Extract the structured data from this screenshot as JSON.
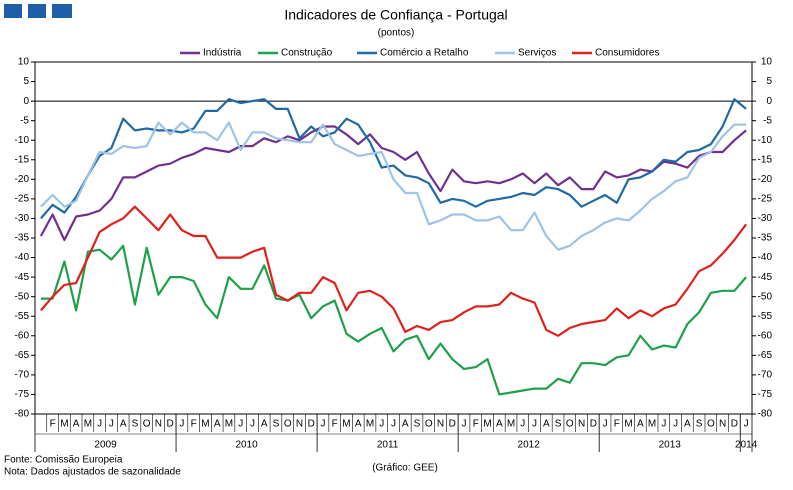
{
  "header": {
    "title": "Indicadores de Confiança - Portugal",
    "subtitle": "(pontos)"
  },
  "chart_data": {
    "type": "line",
    "categories": [
      null,
      "F",
      "M",
      "A",
      "M",
      "J",
      "J",
      "A",
      "S",
      "O",
      "N",
      "D",
      "J",
      "F",
      "M",
      "A",
      "M",
      "J",
      "J",
      "A",
      "S",
      "O",
      "N",
      "D",
      "J",
      "F",
      "M",
      "A",
      "M",
      "J",
      "J",
      "A",
      "S",
      "O",
      "N",
      "D",
      "J",
      "F",
      "M",
      "A",
      "M",
      "J",
      "J",
      "A",
      "S",
      "O",
      "N",
      "D",
      "J",
      "F",
      "M",
      "A",
      "M",
      "J",
      "J",
      "A",
      "S",
      "O",
      "N",
      "D",
      "J"
    ],
    "years": [
      "2009",
      "2010",
      "2011",
      "2012",
      "2013",
      "2014"
    ],
    "ylim": [
      -80,
      10
    ],
    "yticks": [
      10,
      5,
      0,
      -5,
      -10,
      -15,
      -20,
      -25,
      -30,
      -35,
      -40,
      -45,
      -50,
      -55,
      -60,
      -65,
      -70,
      -75,
      -80
    ],
    "y2lim": [
      -80,
      10
    ],
    "y2ticks": [
      10,
      5,
      0,
      -5,
      -10,
      -15,
      -20,
      -25,
      -30,
      -35,
      -40,
      -45,
      -50,
      -55,
      -60,
      -65,
      -70,
      -75,
      -80
    ],
    "reference_line": 0,
    "legend": "top",
    "series": [
      {
        "name": "Indústria",
        "color": "#70308f",
        "values": [
          -34.5,
          -29,
          -35.5,
          -29.5,
          -29,
          -28,
          -25,
          -19.5,
          -19.5,
          -18,
          -16.5,
          -16,
          -14.5,
          -13.5,
          -12,
          -12.5,
          -13,
          -11.5,
          -11.5,
          -9.5,
          -10.5,
          -9,
          -10,
          -8,
          -6.5,
          -6.5,
          -8.5,
          -11,
          -8.5,
          -12,
          -13,
          -15,
          -13,
          -18.5,
          -23,
          -17.5,
          -20.5,
          -21,
          -20.5,
          -21,
          -20,
          -18.5,
          -21,
          -18.5,
          -21.5,
          -19.5,
          -22.5,
          -22.5,
          -18,
          -19.5,
          -19,
          -17.5,
          -18,
          -15.5,
          -16,
          -17,
          -14,
          -13,
          -13,
          -10,
          -7.5
        ]
      },
      {
        "name": "Construção",
        "color": "#1fa04a",
        "values": [
          -50.5,
          -50.5,
          -41,
          -53.5,
          -38.5,
          -38,
          -40.5,
          -37,
          -52,
          -37.5,
          -49.5,
          -45,
          -45,
          -46,
          -52,
          -55.5,
          -45,
          -48,
          -48,
          -42,
          -50.5,
          -51,
          -49.5,
          -55.5,
          -52.5,
          -51,
          -59.5,
          -61.5,
          -59.5,
          -58,
          -64,
          -61,
          -60,
          -66,
          -62,
          -66,
          -68.5,
          -68,
          -66,
          -75,
          -74.5,
          -74,
          -73.5,
          -73.5,
          -71,
          -72,
          -67,
          -67,
          -67.5,
          -65.5,
          -65,
          -60,
          -63.5,
          -62.5,
          -63,
          -57,
          -54,
          -49,
          -48.5,
          -48.5,
          -45
        ]
      },
      {
        "name": "Comércio a Retalho",
        "color": "#1f6aa5",
        "values": [
          -30,
          -26.5,
          -28.5,
          -24.5,
          -19,
          -14,
          -12,
          -4.5,
          -7.5,
          -7,
          -7.5,
          -7.5,
          -8,
          -7,
          -2.5,
          -2.5,
          0.5,
          -0.5,
          0,
          0.5,
          -2,
          -2,
          -9.5,
          -6.5,
          -9,
          -8,
          -4.5,
          -6,
          -10.5,
          -17,
          -16.5,
          -19,
          -19.5,
          -21,
          -26,
          -25,
          -25.5,
          -27,
          -25.5,
          -25,
          -24.5,
          -23.5,
          -24,
          -22,
          -22.5,
          -24,
          -27,
          -25.5,
          -24,
          -26,
          -20,
          -19.5,
          -18,
          -15,
          -15.5,
          -13,
          -12.5,
          -11,
          -6.5,
          0.5,
          -2
        ]
      },
      {
        "name": "Serviços",
        "color": "#9dc3e6",
        "values": [
          -27,
          -24,
          -27,
          -25.5,
          -19,
          -13,
          -13.5,
          -11.5,
          -12,
          -11.5,
          -5.5,
          -8.5,
          -5.5,
          -8,
          -8,
          -10,
          -5.5,
          -12.5,
          -8,
          -8,
          -9.5,
          -10,
          -10.5,
          -10.5,
          -6,
          -11,
          -12.5,
          -14,
          -13.5,
          -13,
          -20,
          -23.5,
          -23.5,
          -31.5,
          -30.5,
          -29,
          -29,
          -30.5,
          -30.5,
          -29.5,
          -33,
          -33,
          -28.5,
          -34.5,
          -38,
          -37,
          -34.5,
          -33,
          -31,
          -30,
          -30.5,
          -28,
          -25,
          -23,
          -20.5,
          -19.5,
          -14.5,
          -13,
          -9,
          -6,
          -6
        ]
      },
      {
        "name": "Consumidores",
        "color": "#e0201b",
        "values": [
          -53.5,
          -50,
          -47,
          -46.5,
          -40,
          -33.5,
          -31.5,
          -30,
          -27,
          -30,
          -33,
          -29,
          -33,
          -34.5,
          -34.5,
          -40,
          -40,
          -40,
          -38.5,
          -37.5,
          -49.5,
          -51,
          -49,
          -49,
          -45,
          -46.5,
          -53.5,
          -49,
          -48.5,
          -50,
          -53,
          -59,
          -57.5,
          -58.5,
          -56.5,
          -56,
          -54,
          -52.5,
          -52.5,
          -52,
          -49,
          -50.5,
          -51.5,
          -58.5,
          -60,
          -58,
          -57,
          -56.5,
          -56,
          -53,
          -55.5,
          -53.5,
          -55,
          -53,
          -52,
          -48,
          -43.5,
          -42,
          -39,
          -35.5,
          -31.5
        ]
      }
    ]
  },
  "footer": {
    "source": "Fonte: Comissão Europeia",
    "note": "Nota: Dados ajustados de sazonalidade",
    "credit": "(Gráfico: GEE)"
  }
}
